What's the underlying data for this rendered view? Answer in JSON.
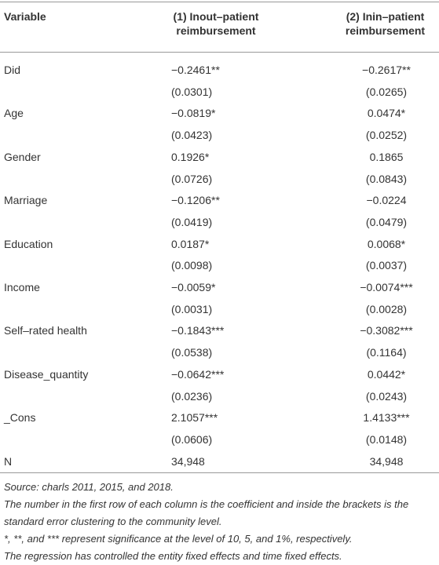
{
  "table": {
    "header": [
      "Variable",
      "(1) Inout–patient reimbursement",
      "(2) Inin–patient reimbursement"
    ],
    "rows": [
      {
        "variable": "Did",
        "col1": {
          "coef": "−0.2461**",
          "se": "(0.0301)"
        },
        "col2": {
          "coef": "−0.2617**",
          "se": "(0.0265)"
        }
      },
      {
        "variable": "Age",
        "col1": {
          "coef": "−0.0819*",
          "se": "(0.0423)"
        },
        "col2": {
          "coef": "0.0474*",
          "se": "(0.0252)"
        }
      },
      {
        "variable": "Gender",
        "col1": {
          "coef": "0.1926*",
          "se": "(0.0726)"
        },
        "col2": {
          "coef": "0.1865",
          "se": "(0.0843)"
        }
      },
      {
        "variable": "Marriage",
        "col1": {
          "coef": "−0.1206**",
          "se": "(0.0419)"
        },
        "col2": {
          "coef": "−0.0224",
          "se": "(0.0479)"
        }
      },
      {
        "variable": "Education",
        "col1": {
          "coef": "0.0187*",
          "se": "(0.0098)"
        },
        "col2": {
          "coef": "0.0068*",
          "se": "(0.0037)"
        }
      },
      {
        "variable": "Income",
        "col1": {
          "coef": "−0.0059*",
          "se": "(0.0031)"
        },
        "col2": {
          "coef": "−0.0074***",
          "se": "(0.0028)"
        }
      },
      {
        "variable": "Self–rated health",
        "col1": {
          "coef": "−0.1843***",
          "se": "(0.0538)"
        },
        "col2": {
          "coef": "−0.3082***",
          "se": "(0.1164)"
        }
      },
      {
        "variable": "Disease_quantity",
        "col1": {
          "coef": "−0.0642***",
          "se": "(0.0236)"
        },
        "col2": {
          "coef": "0.0442*",
          "se": "(0.0243)"
        }
      },
      {
        "variable": "_Cons",
        "col1": {
          "coef": "2.1057***",
          "se": "(0.0606)"
        },
        "col2": {
          "coef": "1.4133***",
          "se": "(0.0148)"
        }
      },
      {
        "variable": "N",
        "col1": {
          "coef": "34,948"
        },
        "col2": {
          "coef": "34,948"
        }
      }
    ]
  },
  "notes": [
    "Source: charls 2011, 2015, and 2018.",
    "The number in the first row of each column is the coefficient and inside the brackets is the standard error clustering to the community level.",
    "*, **, and *** represent significance at the level of 10, 5, and 1%, respectively.",
    "The regression has controlled the entity fixed effects and time fixed effects."
  ]
}
